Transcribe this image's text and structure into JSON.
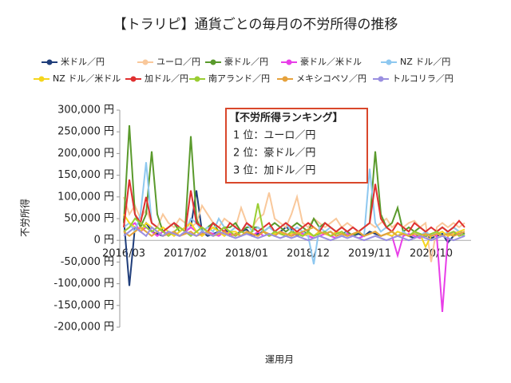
{
  "chart_data": {
    "type": "line",
    "title": "【トラリピ】通貨ごとの毎月の不労所得の推移",
    "x_label": "運用月",
    "y_label": "不労所得",
    "annotations": [
      "【不労所得ランキング】",
      "1 位：ユーロ／円",
      "2 位：豪ドル／円",
      "3 位：加ドル／円"
    ],
    "categories": [
      "2016/03",
      null,
      null,
      null,
      null,
      null,
      null,
      null,
      null,
      null,
      null,
      "2017/02",
      null,
      null,
      null,
      null,
      null,
      null,
      null,
      null,
      null,
      null,
      "2018/01",
      null,
      null,
      null,
      null,
      null,
      null,
      null,
      null,
      null,
      null,
      "2018/12",
      null,
      null,
      null,
      null,
      null,
      null,
      null,
      null,
      null,
      null,
      "2019/11",
      null,
      null,
      null,
      null,
      null,
      null,
      null,
      null,
      null,
      null,
      "2020/10",
      null,
      null,
      null,
      null,
      null,
      null
    ],
    "ylim": [
      -200000,
      300000
    ],
    "yticks": [
      {
        "value": -200000,
        "label": "-200,000 円"
      },
      {
        "value": -150000,
        "label": "-150,000 円"
      },
      {
        "value": -100000,
        "label": "-100,000 円"
      },
      {
        "value": -50000,
        "label": "-50,000 円"
      },
      {
        "value": 0,
        "label": "0 円"
      },
      {
        "value": 50000,
        "label": "50,000 円"
      },
      {
        "value": 100000,
        "label": "100,000 円"
      },
      {
        "value": 150000,
        "label": "150,000 円"
      },
      {
        "value": 200000,
        "label": "200,000 円"
      },
      {
        "value": 250000,
        "label": "250,000 円"
      },
      {
        "value": 300000,
        "label": "300,000 円"
      }
    ],
    "series": [
      {
        "name": "米ドル／円",
        "color": "#1f3d7a",
        "values": [
          50000,
          -105000,
          30000,
          20000,
          40000,
          20000,
          15000,
          10000,
          20000,
          15000,
          10000,
          20000,
          30000,
          115000,
          20000,
          10000,
          15000,
          20000,
          30000,
          10000,
          15000,
          20000,
          25000,
          10000,
          15000,
          20000,
          10000,
          15000,
          20000,
          30000,
          25000,
          10000,
          20000,
          15000,
          10000,
          20000,
          15000,
          20000,
          10000,
          15000,
          20000,
          10000,
          15000,
          10000,
          20000,
          15000,
          10000,
          15000,
          20000,
          10000,
          15000,
          10000,
          5000,
          15000,
          10000,
          5000,
          10000,
          15000,
          -5000,
          10000,
          20000,
          15000
        ]
      },
      {
        "name": "ユーロ／円",
        "color": "#f9c89b",
        "values": [
          100000,
          60000,
          80000,
          50000,
          70000,
          40000,
          30000,
          60000,
          40000,
          30000,
          50000,
          40000,
          30000,
          40000,
          80000,
          60000,
          40000,
          30000,
          50000,
          40000,
          30000,
          75000,
          40000,
          30000,
          50000,
          60000,
          110000,
          50000,
          40000,
          30000,
          60000,
          100000,
          40000,
          30000,
          50000,
          40000,
          30000,
          40000,
          50000,
          30000,
          40000,
          30000,
          20000,
          30000,
          40000,
          30000,
          40000,
          50000,
          30000,
          40000,
          30000,
          40000,
          45000,
          30000,
          40000,
          -50000,
          30000,
          40000,
          30000,
          40000,
          30000,
          40000
        ]
      },
      {
        "name": "豪ドル／円",
        "color": "#5a9a2c",
        "values": [
          40000,
          265000,
          60000,
          30000,
          60000,
          205000,
          60000,
          20000,
          30000,
          40000,
          20000,
          30000,
          240000,
          50000,
          20000,
          30000,
          40000,
          20000,
          30000,
          30000,
          40000,
          20000,
          30000,
          30000,
          30000,
          20000,
          30000,
          40000,
          30000,
          20000,
          30000,
          40000,
          30000,
          20000,
          50000,
          30000,
          40000,
          30000,
          20000,
          30000,
          20000,
          10000,
          20000,
          30000,
          40000,
          205000,
          60000,
          30000,
          40000,
          75000,
          20000,
          30000,
          20000,
          30000,
          20000,
          10000,
          20000,
          30000,
          20000,
          30000,
          20000,
          10000
        ]
      },
      {
        "name": "豪ドル／米ドル",
        "color": "#e83ee8",
        "values": [
          20000,
          30000,
          40000,
          20000,
          30000,
          20000,
          10000,
          20000,
          15000,
          20000,
          10000,
          20000,
          30000,
          20000,
          10000,
          20000,
          15000,
          10000,
          20000,
          15000,
          10000,
          20000,
          15000,
          10000,
          20000,
          10000,
          15000,
          10000,
          20000,
          15000,
          10000,
          20000,
          15000,
          10000,
          5000,
          10000,
          15000,
          10000,
          5000,
          10000,
          15000,
          10000,
          5000,
          10000,
          15000,
          20000,
          10000,
          15000,
          10000,
          -35000,
          10000,
          15000,
          10000,
          5000,
          10000,
          15000,
          10000,
          -165000,
          10000,
          20000,
          15000,
          10000
        ]
      },
      {
        "name": "NZ ドル／円",
        "color": "#8ec8f0",
        "values": [
          30000,
          40000,
          20000,
          60000,
          180000,
          40000,
          30000,
          20000,
          30000,
          40000,
          30000,
          20000,
          50000,
          40000,
          20000,
          30000,
          20000,
          50000,
          30000,
          20000,
          30000,
          20000,
          40000,
          20000,
          30000,
          20000,
          30000,
          20000,
          30000,
          40000,
          20000,
          30000,
          20000,
          10000,
          -55000,
          30000,
          20000,
          30000,
          20000,
          10000,
          20000,
          30000,
          20000,
          10000,
          165000,
          40000,
          20000,
          30000,
          20000,
          10000,
          20000,
          10000,
          20000,
          10000,
          20000,
          10000,
          20000,
          10000,
          20000,
          30000,
          20000,
          10000
        ]
      },
      {
        "name": "NZ ドル／米ドル",
        "color": "#f5d61d",
        "values": [
          60000,
          40000,
          30000,
          20000,
          40000,
          30000,
          20000,
          30000,
          20000,
          10000,
          20000,
          30000,
          40000,
          20000,
          10000,
          20000,
          30000,
          20000,
          10000,
          20000,
          20000,
          10000,
          20000,
          15000,
          10000,
          20000,
          10000,
          15000,
          20000,
          10000,
          15000,
          20000,
          10000,
          15000,
          10000,
          20000,
          15000,
          10000,
          20000,
          15000,
          10000,
          15000,
          20000,
          10000,
          15000,
          20000,
          10000,
          15000,
          10000,
          20000,
          15000,
          10000,
          20000,
          15000,
          -15000,
          10000,
          15000,
          20000,
          10000,
          15000,
          20000,
          25000
        ]
      },
      {
        "name": "加ドル／円",
        "color": "#e03030",
        "values": [
          30000,
          140000,
          60000,
          40000,
          100000,
          40000,
          30000,
          20000,
          30000,
          40000,
          30000,
          20000,
          115000,
          40000,
          30000,
          20000,
          40000,
          30000,
          20000,
          40000,
          30000,
          20000,
          40000,
          30000,
          20000,
          30000,
          40000,
          20000,
          30000,
          40000,
          30000,
          20000,
          30000,
          40000,
          30000,
          20000,
          40000,
          30000,
          20000,
          30000,
          20000,
          30000,
          20000,
          30000,
          40000,
          130000,
          50000,
          30000,
          20000,
          40000,
          30000,
          20000,
          40000,
          30000,
          20000,
          30000,
          20000,
          30000,
          20000,
          30000,
          45000,
          30000
        ]
      },
      {
        "name": "南アランド／円",
        "color": "#9acd32",
        "values": [
          20000,
          30000,
          50000,
          40000,
          30000,
          20000,
          30000,
          20000,
          10000,
          20000,
          30000,
          20000,
          10000,
          20000,
          30000,
          20000,
          10000,
          20000,
          30000,
          20000,
          10000,
          20000,
          15000,
          20000,
          85000,
          20000,
          10000,
          20000,
          15000,
          10000,
          20000,
          15000,
          10000,
          20000,
          10000,
          15000,
          20000,
          10000,
          15000,
          20000,
          10000,
          15000,
          20000,
          10000,
          15000,
          20000,
          10000,
          15000,
          20000,
          10000,
          15000,
          10000,
          20000,
          15000,
          10000,
          15000,
          20000,
          10000,
          15000,
          20000,
          10000,
          15000
        ]
      },
      {
        "name": "メキシコペソ／円",
        "color": "#e6a23c",
        "values": [
          20000,
          10000,
          20000,
          30000,
          20000,
          10000,
          20000,
          10000,
          15000,
          20000,
          10000,
          15000,
          20000,
          10000,
          15000,
          20000,
          10000,
          15000,
          20000,
          10000,
          15000,
          10000,
          20000,
          15000,
          10000,
          20000,
          15000,
          10000,
          20000,
          15000,
          10000,
          15000,
          20000,
          25000,
          30000,
          20000,
          15000,
          20000,
          10000,
          15000,
          10000,
          15000,
          20000,
          10000,
          15000,
          20000,
          10000,
          15000,
          20000,
          10000,
          15000,
          10000,
          15000,
          10000,
          15000,
          10000,
          15000,
          10000,
          15000,
          10000,
          15000,
          20000
        ]
      },
      {
        "name": "トルコリラ／円",
        "color": "#9a8fe0",
        "values": [
          10000,
          20000,
          30000,
          20000,
          10000,
          30000,
          20000,
          10000,
          20000,
          15000,
          10000,
          20000,
          15000,
          10000,
          20000,
          15000,
          10000,
          20000,
          15000,
          10000,
          5000,
          10000,
          15000,
          10000,
          5000,
          10000,
          15000,
          10000,
          5000,
          10000,
          5000,
          10000,
          5000,
          0,
          5000,
          10000,
          5000,
          0,
          5000,
          10000,
          5000,
          10000,
          5000,
          0,
          5000,
          10000,
          5000,
          0,
          5000,
          10000,
          5000,
          0,
          5000,
          10000,
          5000,
          0,
          5000,
          10000,
          5000,
          0,
          5000,
          10000
        ]
      }
    ]
  }
}
